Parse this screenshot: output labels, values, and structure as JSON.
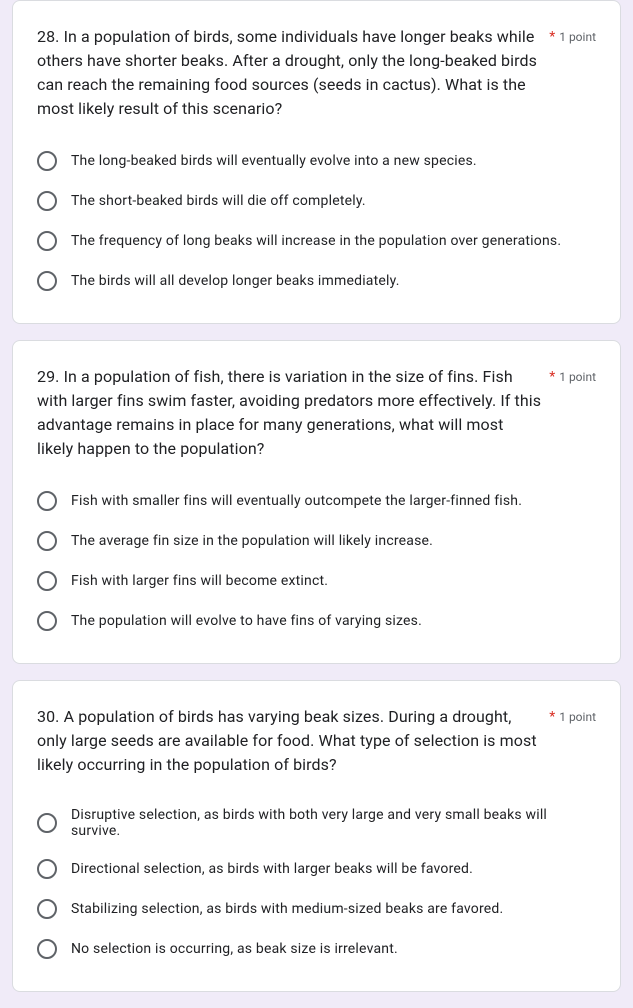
{
  "required_marker": "*",
  "points_label": "1 point",
  "questions": [
    {
      "number": "28.",
      "text": " In a population of birds, some individuals have longer beaks while others have shorter beaks. After a drought, only the long-beaked birds can reach the remaining food sources (seeds in cactus). What is the most likely result of this scenario?",
      "options": [
        "The long-beaked birds will eventually evolve into a new species.",
        "The short-beaked birds will die off completely.",
        "The frequency of long beaks will increase in the population over generations.",
        "The birds will all develop longer beaks immediately."
      ]
    },
    {
      "number": "29.",
      "text": " In a population of fish, there is variation in the size of fins. Fish with larger fins swim faster, avoiding predators more effectively. If this advantage remains in place for many generations, what will most likely happen to the population?",
      "options": [
        "Fish with smaller fins will eventually outcompete the larger-finned fish.",
        "The average fin size in the population will likely increase.",
        "Fish with larger fins will become extinct.",
        "The population will evolve to have fins of varying sizes."
      ]
    },
    {
      "number": "30.",
      "text": "A population of birds has varying beak sizes. During a drought, only large seeds are available for food. What type of selection is most likely occurring in the population of birds?",
      "options": [
        "Disruptive selection, as birds with both very large and very small beaks will survive.",
        "Directional selection, as birds with larger beaks will be favored.",
        "Stabilizing selection, as birds with medium-sized beaks are favored.",
        "No selection is occurring, as beak size is irrelevant."
      ]
    }
  ]
}
